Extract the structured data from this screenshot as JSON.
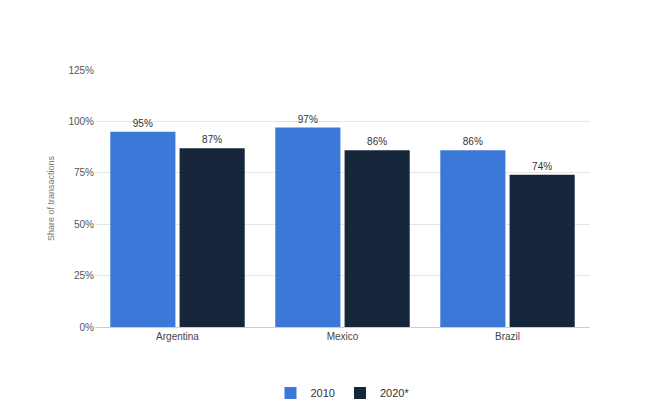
{
  "chart_data": {
    "type": "bar",
    "categories": [
      "Argentina",
      "Mexico",
      "Brazil"
    ],
    "series": [
      {
        "name": "2010",
        "color": "#3b78d8",
        "values": [
          95,
          97,
          86
        ],
        "value_labels": [
          "95%",
          "97%",
          "86%"
        ]
      },
      {
        "name": "2020*",
        "color": "#15263a",
        "values": [
          87,
          86,
          74
        ],
        "value_labels": [
          "87%",
          "86%",
          "74%"
        ]
      }
    ],
    "y_label": "Share of transactions",
    "ylim": [
      0,
      125
    ],
    "yticks": [
      {
        "value": 0,
        "label": "0%"
      },
      {
        "value": 25,
        "label": "25%"
      },
      {
        "value": 50,
        "label": "50%"
      },
      {
        "value": 75,
        "label": "75%"
      },
      {
        "value": 100,
        "label": "100%"
      },
      {
        "value": 125,
        "label": "125%"
      }
    ],
    "grid": true,
    "legend": "bottom",
    "data_labels": true
  }
}
